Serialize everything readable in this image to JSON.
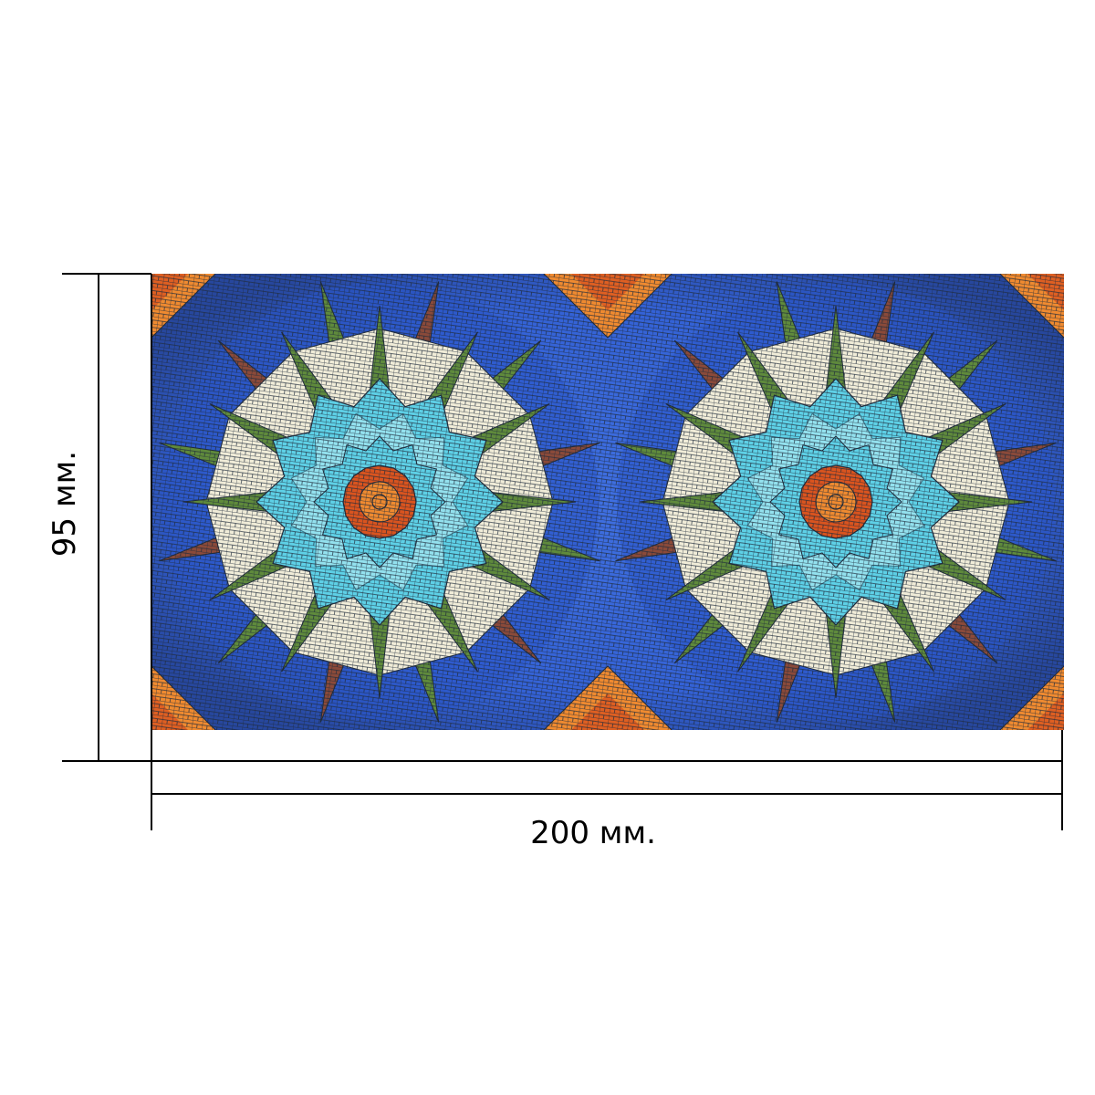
{
  "dimensions": {
    "width_label": "200 мм.",
    "height_label": "95 мм."
  },
  "tile": {
    "motif": "mosaic-kaleidoscope-flower",
    "repeat_count": 2,
    "colors": {
      "blue": "#4a7de8",
      "deep_blue": "#2a56c8",
      "aqua": "#5ed0e6",
      "light_aqua": "#bfeff5",
      "cream": "#f0ecd8",
      "green": "#5f8a3c",
      "brown": "#8a4a3a",
      "orange": "#ef8a30",
      "red_orange": "#d9541f",
      "grout": "#1f2a3a"
    }
  }
}
